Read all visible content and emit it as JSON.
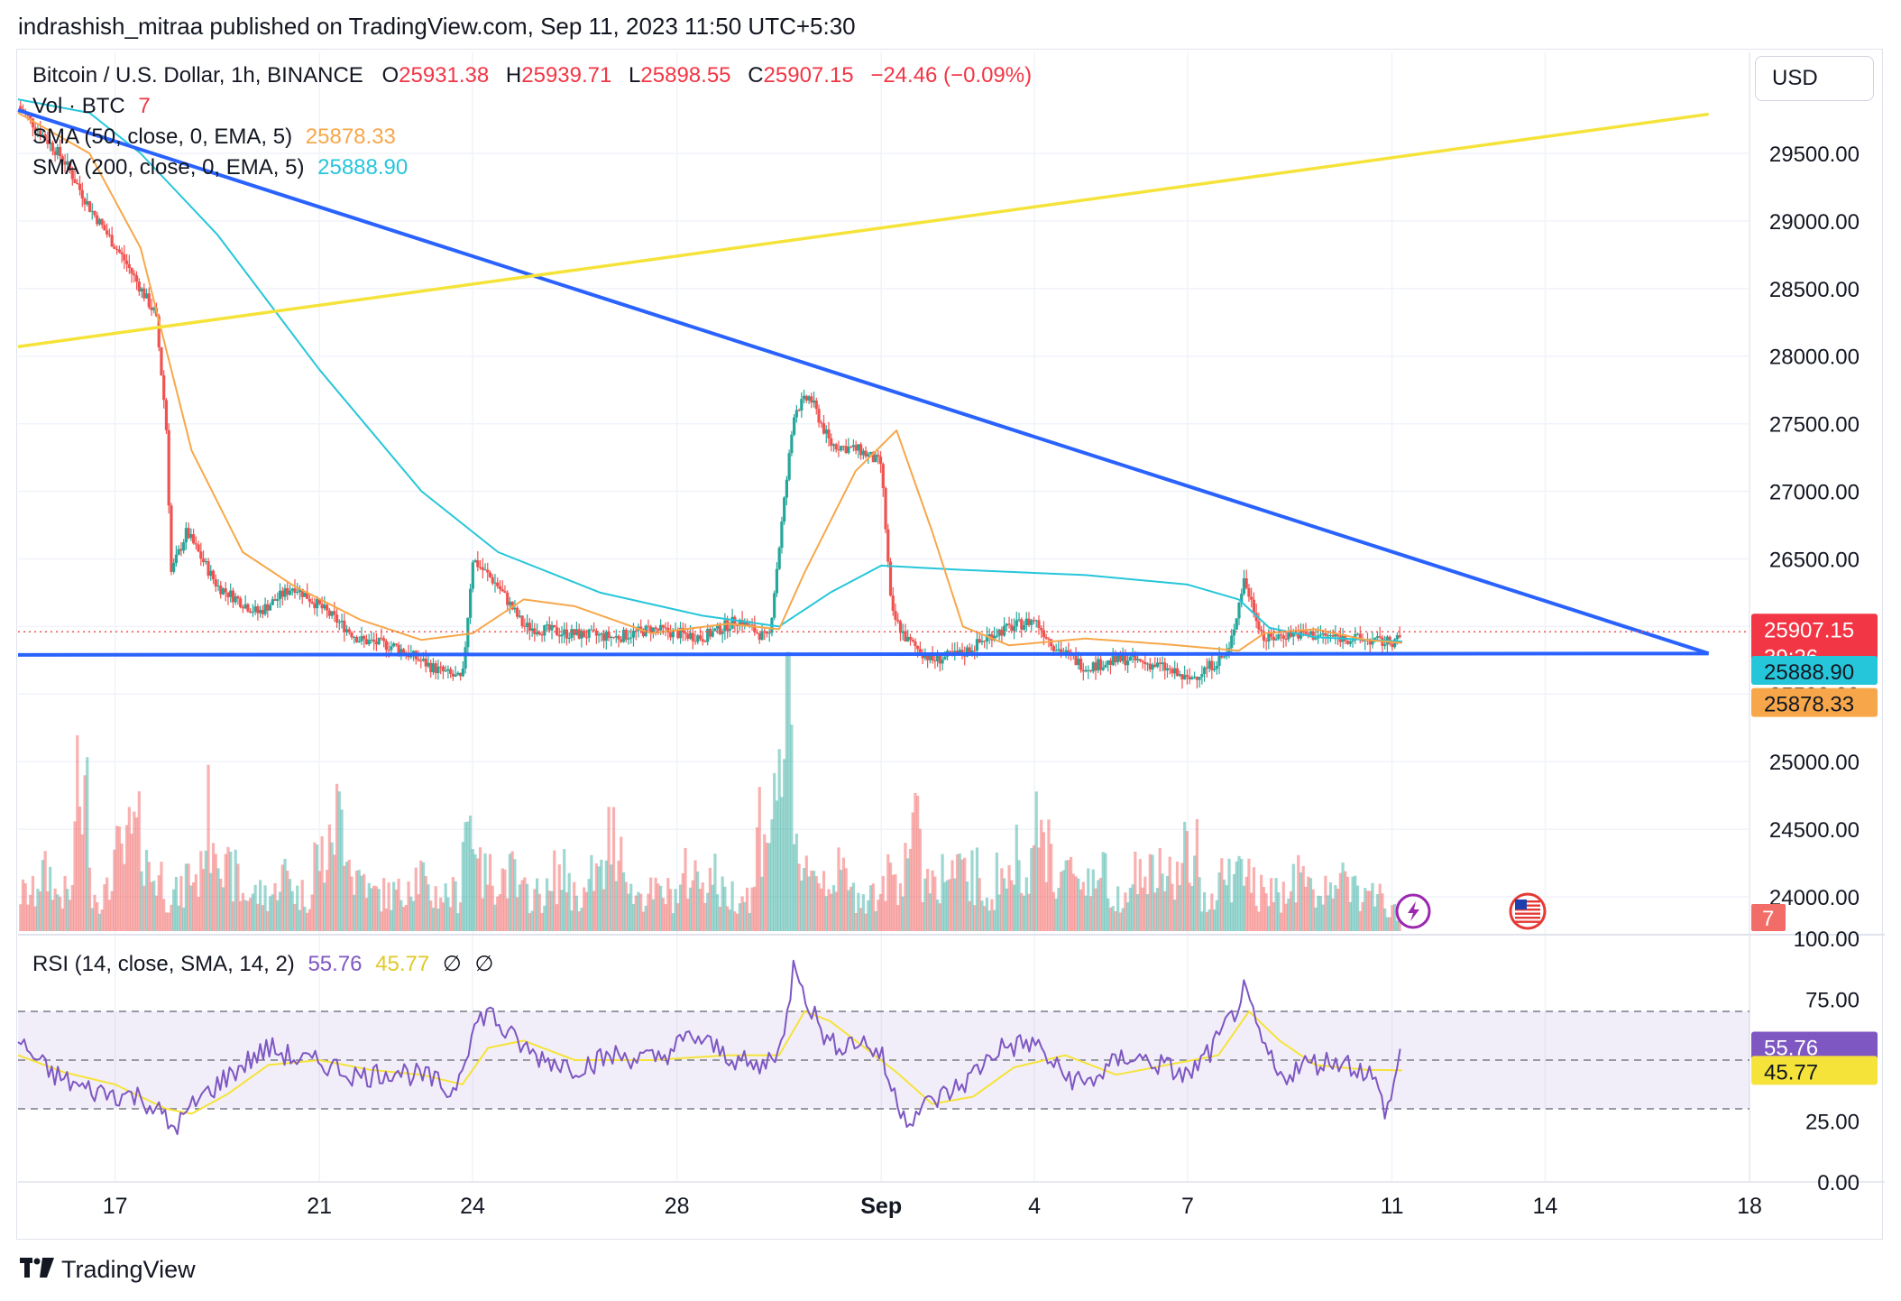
{
  "header": {
    "published": "indrashish_mitraa published on TradingView.com, Sep 11, 2023 11:50 UTC+5:30"
  },
  "currency_button": "USD",
  "legend": {
    "symbol": "Bitcoin / U.S. Dollar, 1h, BINANCE",
    "o_label": "O",
    "o_value": "25931.38",
    "h_label": "H",
    "h_value": "25939.71",
    "l_label": "L",
    "l_value": "25898.55",
    "c_label": "C",
    "c_value": "25907.15",
    "change": "−24.46 (−0.09%)",
    "vol_label": "Vol · BTC",
    "vol_value": "7",
    "sma50_label": "SMA (50, close, 0, EMA, 5)",
    "sma50_value": "25878.33",
    "sma200_label": "SMA (200, close, 0, EMA, 5)",
    "sma200_value": "25888.90",
    "rsi_label": "RSI (14, close, SMA, 14, 2)",
    "rsi_value": "55.76",
    "rsi_sma_value": "45.77",
    "rsi_extra1": "∅",
    "rsi_extra2": "∅"
  },
  "price_labels": {
    "last": "25907.15",
    "countdown": "39:26",
    "sma200": "25888.90",
    "sma50": "25878.33",
    "volume": "7",
    "rsi": "55.76",
    "rsi_sma": "45.77"
  },
  "colors": {
    "up": "#26a69a",
    "down": "#ef5350",
    "sma50": "#f7a74a",
    "sma200": "#26c6da",
    "trend_blue": "#2962ff",
    "trend_yellow": "#f5e33a",
    "rsi": "#7e57c2",
    "rsi_sma": "#f5e33a",
    "rsi_band": "#7e57c2"
  },
  "icons": {
    "lightning": "lightning-icon",
    "flag": "us-flag-icon"
  },
  "footer": {
    "brand": "TradingView"
  },
  "chart_data": {
    "type": "candlestick",
    "title": "Bitcoin / U.S. Dollar, 1h, BINANCE",
    "price_axis": {
      "ticks": [
        24000,
        24500,
        25000,
        25500,
        26000,
        26500,
        27000,
        27500,
        28000,
        28500,
        29000,
        29500
      ],
      "tick_labels": [
        "24000.00",
        "24500.00",
        "25000.00",
        "25500.00",
        "26000.00",
        "26500.00",
        "27000.00",
        "27500.00",
        "28000.00",
        "28500.00",
        "29000.00",
        "29500.00"
      ],
      "ylim": [
        23700,
        30200
      ]
    },
    "rsi_axis": {
      "ticks": [
        0,
        25,
        50,
        75,
        100
      ],
      "tick_labels": [
        "0.00",
        "25.00",
        "",
        "75.00",
        "100.00"
      ],
      "band": [
        30,
        70
      ]
    },
    "time_axis": {
      "labels": [
        "17",
        "21",
        "24",
        "28",
        "Sep",
        "4",
        "7",
        "11",
        "14",
        "18"
      ],
      "day_index": [
        0,
        4,
        7,
        11,
        15,
        18,
        21,
        25,
        28,
        32
      ],
      "xlim_days": [
        -1.9,
        32.0
      ]
    },
    "price_path": [
      [
        -1.9,
        29850
      ],
      [
        -1.0,
        29450
      ],
      [
        -0.5,
        29100
      ],
      [
        0.2,
        28700
      ],
      [
        0.8,
        28300
      ],
      [
        1.0,
        27500
      ],
      [
        1.1,
        26400
      ],
      [
        1.4,
        26700
      ],
      [
        2.0,
        26300
      ],
      [
        2.8,
        26100
      ],
      [
        3.5,
        26300
      ],
      [
        4.0,
        26150
      ],
      [
        4.8,
        25900
      ],
      [
        5.5,
        25850
      ],
      [
        6.2,
        25700
      ],
      [
        6.8,
        25600
      ],
      [
        7.0,
        26500
      ],
      [
        7.5,
        26300
      ],
      [
        8.0,
        26000
      ],
      [
        8.8,
        25950
      ],
      [
        9.8,
        25920
      ],
      [
        10.5,
        25980
      ],
      [
        11.5,
        25920
      ],
      [
        12.2,
        26050
      ],
      [
        12.8,
        25900
      ],
      [
        13.3,
        27600
      ],
      [
        13.6,
        27700
      ],
      [
        14.0,
        27350
      ],
      [
        14.6,
        27300
      ],
      [
        15.0,
        27200
      ],
      [
        15.2,
        26100
      ],
      [
        15.5,
        25900
      ],
      [
        16.0,
        25750
      ],
      [
        16.6,
        25800
      ],
      [
        17.2,
        25950
      ],
      [
        18.0,
        26050
      ],
      [
        18.4,
        25850
      ],
      [
        19.0,
        25700
      ],
      [
        19.8,
        25760
      ],
      [
        20.5,
        25700
      ],
      [
        21.0,
        25600
      ],
      [
        21.8,
        25800
      ],
      [
        22.1,
        26350
      ],
      [
        22.5,
        25900
      ],
      [
        23.0,
        25950
      ],
      [
        24.0,
        25920
      ],
      [
        24.9,
        25880
      ],
      [
        25.2,
        25910
      ]
    ],
    "sma50_path": [
      [
        -1.9,
        29800
      ],
      [
        -0.5,
        29500
      ],
      [
        0.5,
        28800
      ],
      [
        1.5,
        27300
      ],
      [
        2.5,
        26550
      ],
      [
        3.5,
        26300
      ],
      [
        4.8,
        26050
      ],
      [
        6.0,
        25900
      ],
      [
        7.0,
        25950
      ],
      [
        8.0,
        26200
      ],
      [
        9.0,
        26150
      ],
      [
        10.5,
        25950
      ],
      [
        12.0,
        26020
      ],
      [
        13.0,
        25980
      ],
      [
        13.5,
        26400
      ],
      [
        14.5,
        27150
      ],
      [
        15.3,
        27450
      ],
      [
        16.0,
        26700
      ],
      [
        16.6,
        26000
      ],
      [
        17.5,
        25860
      ],
      [
        19.0,
        25910
      ],
      [
        20.5,
        25870
      ],
      [
        22.0,
        25820
      ],
      [
        22.5,
        25950
      ],
      [
        23.5,
        25980
      ],
      [
        24.5,
        25900
      ],
      [
        25.2,
        25878
      ]
    ],
    "sma200_path": [
      [
        -1.9,
        29900
      ],
      [
        -0.5,
        29800
      ],
      [
        0.5,
        29500
      ],
      [
        2.0,
        28900
      ],
      [
        4.0,
        27900
      ],
      [
        6.0,
        27000
      ],
      [
        7.5,
        26550
      ],
      [
        9.5,
        26250
      ],
      [
        11.5,
        26080
      ],
      [
        13.0,
        26000
      ],
      [
        14.0,
        26250
      ],
      [
        15.0,
        26450
      ],
      [
        16.5,
        26420
      ],
      [
        19.0,
        26380
      ],
      [
        21.0,
        26310
      ],
      [
        22.0,
        26200
      ],
      [
        22.6,
        25990
      ],
      [
        23.5,
        25920
      ],
      [
        25.2,
        25889
      ]
    ],
    "volume_btc": [
      2,
      3,
      2,
      7,
      2,
      4,
      5,
      3,
      2,
      3,
      6,
      3,
      2,
      2,
      3,
      2,
      4,
      6,
      3,
      2,
      2,
      3,
      2,
      2,
      6,
      3,
      3,
      2,
      2,
      3,
      2,
      3,
      5,
      2,
      2,
      2,
      3,
      3,
      2,
      2,
      6,
      10,
      4,
      3,
      3,
      2,
      2,
      3,
      5,
      3,
      3,
      3,
      2,
      3,
      4,
      5,
      3,
      3,
      3,
      2,
      3,
      3,
      3,
      4,
      2,
      3,
      3,
      2,
      2,
      3,
      2,
      3,
      2,
      2,
      1
    ],
    "rsi_path": [
      [
        -1.9,
        58
      ],
      [
        -1.3,
        45
      ],
      [
        -0.6,
        38
      ],
      [
        0.0,
        36
      ],
      [
        0.5,
        35
      ],
      [
        0.9,
        28
      ],
      [
        1.1,
        22
      ],
      [
        1.3,
        25
      ],
      [
        1.6,
        33
      ],
      [
        2.0,
        40
      ],
      [
        2.5,
        48
      ],
      [
        3.0,
        55
      ],
      [
        3.6,
        50
      ],
      [
        4.2,
        48
      ],
      [
        4.8,
        43
      ],
      [
        5.5,
        46
      ],
      [
        6.2,
        42
      ],
      [
        6.6,
        36
      ],
      [
        7.0,
        62
      ],
      [
        7.3,
        71
      ],
      [
        7.6,
        62
      ],
      [
        8.2,
        52
      ],
      [
        9.0,
        47
      ],
      [
        9.8,
        52
      ],
      [
        10.6,
        50
      ],
      [
        11.3,
        60
      ],
      [
        12.0,
        52
      ],
      [
        12.6,
        46
      ],
      [
        13.1,
        58
      ],
      [
        13.3,
        92
      ],
      [
        13.6,
        72
      ],
      [
        14.0,
        56
      ],
      [
        14.6,
        58
      ],
      [
        15.0,
        52
      ],
      [
        15.2,
        38
      ],
      [
        15.5,
        26
      ],
      [
        16.0,
        33
      ],
      [
        16.6,
        40
      ],
      [
        17.3,
        55
      ],
      [
        18.0,
        57
      ],
      [
        18.5,
        45
      ],
      [
        19.0,
        40
      ],
      [
        19.8,
        52
      ],
      [
        20.5,
        48
      ],
      [
        21.0,
        43
      ],
      [
        21.5,
        55
      ],
      [
        21.9,
        69
      ],
      [
        22.1,
        78
      ],
      [
        22.4,
        60
      ],
      [
        22.8,
        42
      ],
      [
        23.2,
        48
      ],
      [
        24.0,
        50
      ],
      [
        24.6,
        44
      ],
      [
        24.9,
        28
      ],
      [
        25.2,
        56
      ]
    ],
    "rsi_sma_path": [
      [
        -1.9,
        52
      ],
      [
        -1.0,
        45
      ],
      [
        0.0,
        40
      ],
      [
        1.0,
        30
      ],
      [
        1.5,
        28
      ],
      [
        2.2,
        36
      ],
      [
        3.0,
        48
      ],
      [
        4.0,
        50
      ],
      [
        5.0,
        46
      ],
      [
        6.0,
        44
      ],
      [
        6.8,
        40
      ],
      [
        7.3,
        55
      ],
      [
        8.0,
        58
      ],
      [
        9.0,
        50
      ],
      [
        10.5,
        50
      ],
      [
        12.0,
        52
      ],
      [
        13.0,
        52
      ],
      [
        13.5,
        70
      ],
      [
        14.0,
        66
      ],
      [
        14.5,
        58
      ],
      [
        15.3,
        45
      ],
      [
        16.0,
        32
      ],
      [
        16.8,
        35
      ],
      [
        17.6,
        47
      ],
      [
        18.6,
        52
      ],
      [
        19.6,
        44
      ],
      [
        20.6,
        48
      ],
      [
        21.6,
        52
      ],
      [
        22.2,
        70
      ],
      [
        22.8,
        58
      ],
      [
        23.5,
        48
      ],
      [
        24.5,
        46
      ],
      [
        25.2,
        45.77
      ]
    ],
    "trendlines": [
      {
        "name": "descending resistance",
        "from": {
          "day": -1.9,
          "price": 29820
        },
        "to": {
          "day": 31.2,
          "price": 25800
        }
      },
      {
        "name": "horizontal support",
        "from": {
          "day": -1.9,
          "price": 25790
        },
        "to": {
          "day": 31.2,
          "price": 25800
        }
      },
      {
        "name": "ascending line",
        "from": {
          "day": -1.9,
          "price": 28070
        },
        "to": {
          "day": 31.2,
          "price": 29790
        }
      }
    ]
  }
}
